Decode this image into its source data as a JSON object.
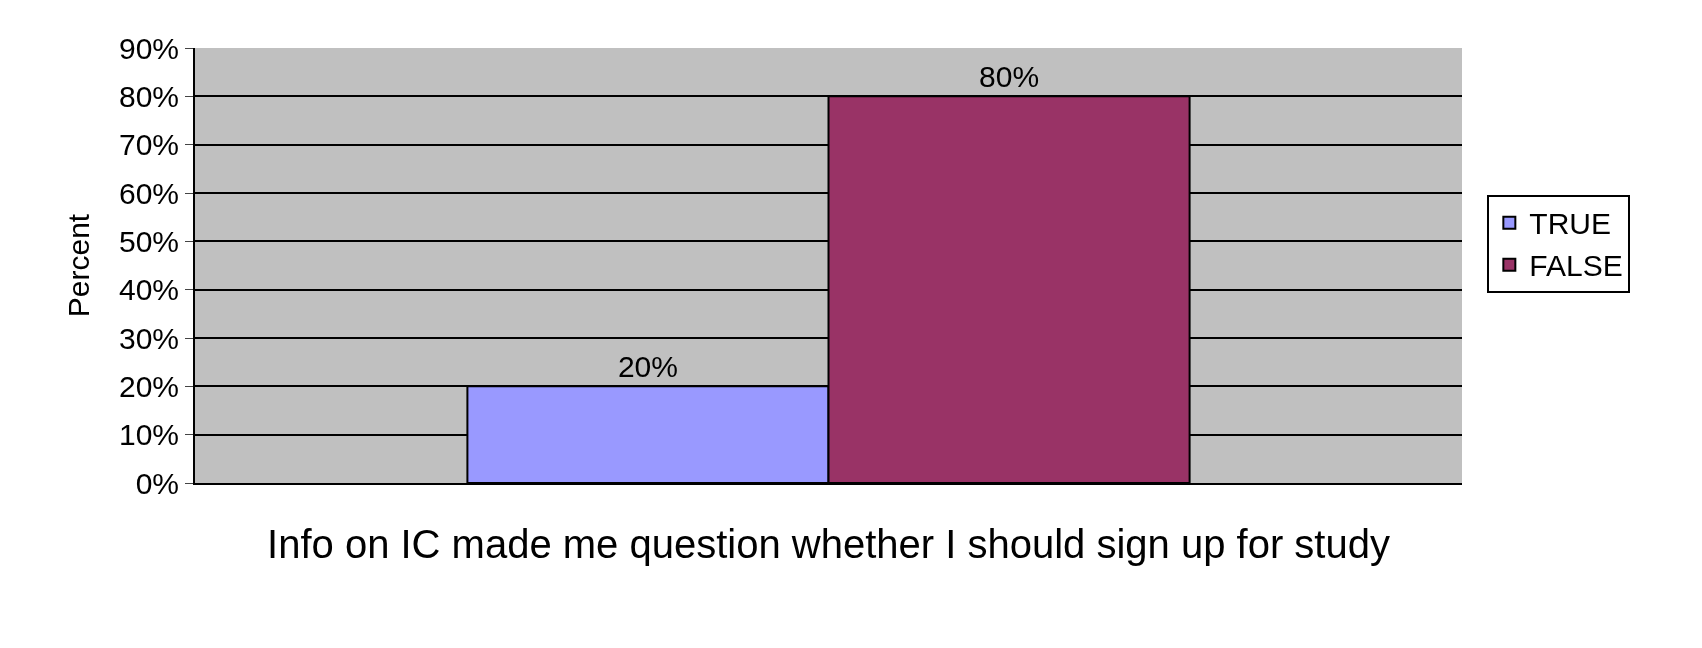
{
  "chart_data": {
    "type": "bar",
    "xlabel": "Info on IC made me question whether I should sign up for study",
    "ylabel": "Percent",
    "categories": [
      null
    ],
    "series": [
      {
        "name": "TRUE",
        "color": "#9999ff",
        "values": [
          20
        ],
        "value_labels": [
          "20%"
        ]
      },
      {
        "name": "FALSE",
        "color": "#993366",
        "values": [
          80
        ],
        "value_labels": [
          "80%"
        ]
      }
    ],
    "ylim": [
      0,
      90
    ],
    "yticks": [
      {
        "value": 0,
        "label": "0%"
      },
      {
        "value": 10,
        "label": "10%"
      },
      {
        "value": 20,
        "label": "20%"
      },
      {
        "value": 30,
        "label": "30%"
      },
      {
        "value": 40,
        "label": "40%"
      },
      {
        "value": 50,
        "label": "50%"
      },
      {
        "value": 60,
        "label": "60%"
      },
      {
        "value": 70,
        "label": "70%"
      },
      {
        "value": 80,
        "label": "80%"
      },
      {
        "value": 90,
        "label": "90%"
      }
    ],
    "grid": "y",
    "legend": "right"
  }
}
